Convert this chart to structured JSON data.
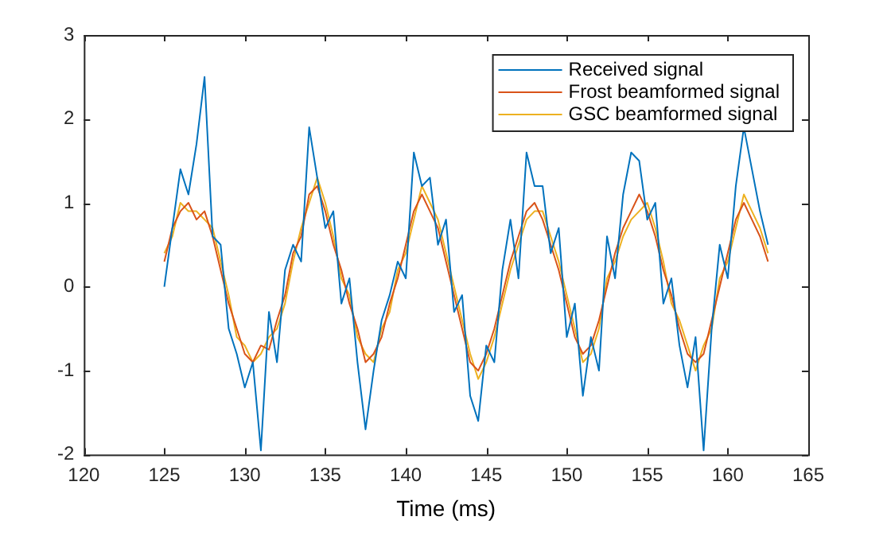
{
  "chart_data": {
    "type": "line",
    "xlabel": "Time (ms)",
    "x": [
      125,
      125.5,
      126,
      126.5,
      127,
      127.5,
      128,
      128.5,
      129,
      129.5,
      130,
      130.5,
      131,
      131.5,
      132,
      132.5,
      133,
      133.5,
      134,
      134.5,
      135,
      135.5,
      136,
      136.5,
      137,
      137.5,
      138,
      138.5,
      139,
      139.5,
      140,
      140.5,
      141,
      141.5,
      142,
      142.5,
      143,
      143.5,
      144,
      144.5,
      145,
      145.5,
      146,
      146.5,
      147,
      147.5,
      148,
      148.5,
      149,
      149.5,
      150,
      150.5,
      151,
      151.5,
      152,
      152.5,
      153,
      153.5,
      154,
      154.5,
      155,
      155.5,
      156,
      156.5,
      157,
      157.5,
      158,
      158.5,
      159,
      159.5,
      160,
      160.5,
      161,
      161.5,
      162,
      162.5
    ],
    "series": [
      {
        "name": "Received signal",
        "color": "#0072bd",
        "values": [
          0.0,
          0.7,
          1.4,
          1.1,
          1.7,
          2.5,
          0.6,
          0.5,
          -0.5,
          -0.8,
          -1.2,
          -0.9,
          -1.95,
          -0.3,
          -0.9,
          0.2,
          0.5,
          0.3,
          1.9,
          1.3,
          0.7,
          0.9,
          -0.2,
          0.1,
          -0.9,
          -1.7,
          -1.0,
          -0.4,
          -0.1,
          0.3,
          0.1,
          1.6,
          1.2,
          1.3,
          0.5,
          0.8,
          -0.3,
          -0.1,
          -1.3,
          -1.6,
          -0.7,
          -0.9,
          0.2,
          0.8,
          0.1,
          1.6,
          1.2,
          1.2,
          0.4,
          0.7,
          -0.6,
          -0.2,
          -1.3,
          -0.6,
          -1.0,
          0.6,
          0.1,
          1.1,
          1.6,
          1.5,
          0.8,
          1.0,
          -0.2,
          0.1,
          -0.7,
          -1.2,
          -0.6,
          -1.95,
          -0.5,
          0.5,
          0.1,
          1.2,
          1.9,
          1.4,
          0.9,
          0.5
        ]
      },
      {
        "name": "Frost beamformed signal",
        "color": "#d95319",
        "values": [
          0.3,
          0.7,
          0.9,
          1.0,
          0.8,
          0.9,
          0.6,
          0.2,
          -0.2,
          -0.5,
          -0.8,
          -0.9,
          -0.7,
          -0.75,
          -0.4,
          -0.1,
          0.4,
          0.6,
          1.1,
          1.2,
          0.9,
          0.5,
          0.2,
          -0.2,
          -0.5,
          -0.9,
          -0.8,
          -0.6,
          -0.2,
          0.1,
          0.5,
          0.9,
          1.1,
          0.9,
          0.7,
          0.3,
          -0.1,
          -0.5,
          -0.9,
          -1.0,
          -0.8,
          -0.5,
          -0.1,
          0.3,
          0.6,
          0.9,
          1.0,
          0.8,
          0.5,
          0.2,
          -0.2,
          -0.6,
          -0.8,
          -0.7,
          -0.4,
          0.0,
          0.4,
          0.7,
          0.9,
          1.1,
          0.9,
          0.6,
          0.2,
          -0.1,
          -0.5,
          -0.8,
          -0.9,
          -0.8,
          -0.4,
          0.0,
          0.4,
          0.8,
          1.0,
          0.8,
          0.6,
          0.3
        ]
      },
      {
        "name": "GSC beamformed signal",
        "color": "#edb120",
        "values": [
          0.4,
          0.6,
          1.0,
          0.9,
          0.9,
          0.8,
          0.7,
          0.3,
          -0.1,
          -0.6,
          -0.7,
          -0.9,
          -0.8,
          -0.6,
          -0.5,
          -0.2,
          0.3,
          0.7,
          1.0,
          1.3,
          1.0,
          0.6,
          0.1,
          -0.1,
          -0.6,
          -0.8,
          -0.9,
          -0.5,
          -0.3,
          0.2,
          0.4,
          0.8,
          1.2,
          1.0,
          0.8,
          0.4,
          0.0,
          -0.4,
          -0.8,
          -1.1,
          -0.9,
          -0.6,
          -0.2,
          0.2,
          0.5,
          0.8,
          0.9,
          0.9,
          0.6,
          0.3,
          -0.1,
          -0.5,
          -0.9,
          -0.8,
          -0.5,
          0.1,
          0.3,
          0.6,
          0.8,
          0.9,
          1.0,
          0.7,
          0.3,
          -0.2,
          -0.4,
          -0.7,
          -1.0,
          -0.7,
          -0.5,
          0.1,
          0.3,
          0.7,
          1.1,
          0.9,
          0.7,
          0.4
        ]
      }
    ],
    "xlim": [
      120,
      165
    ],
    "xticks": [
      120,
      125,
      130,
      135,
      140,
      145,
      150,
      155,
      160,
      165
    ],
    "ylim": [
      -2,
      3
    ],
    "yticks": [
      -2,
      -1,
      0,
      1,
      2,
      3
    ],
    "grid": false,
    "legend": "top right",
    "marker": "none",
    "line_style": "solid"
  }
}
